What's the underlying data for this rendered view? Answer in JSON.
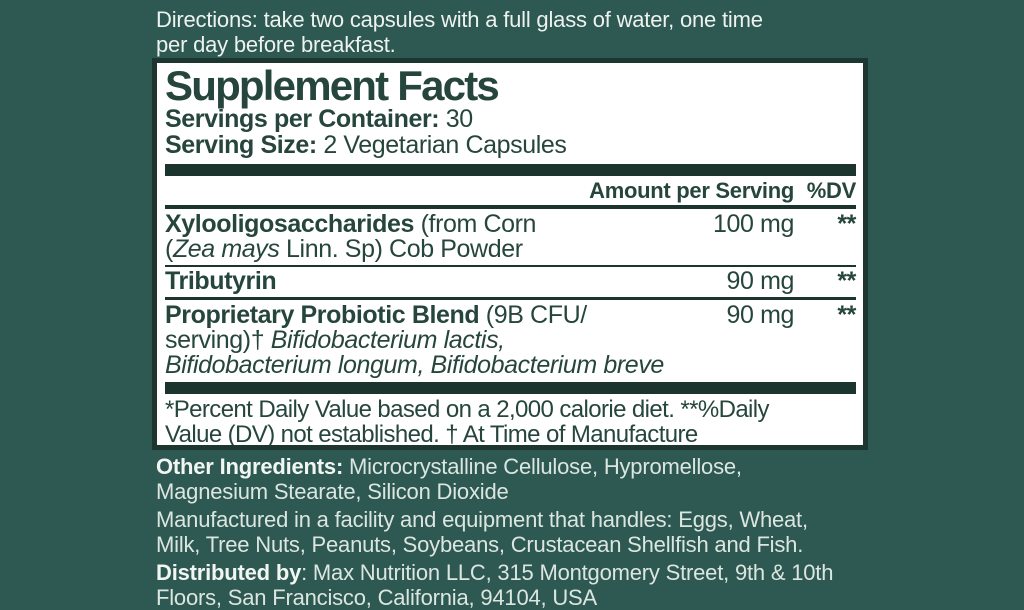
{
  "colors": {
    "background": "#2e5852",
    "panel_background": "#ffffff",
    "panel_border": "#1d362f",
    "ink": "#26463d",
    "divider_bar": "#1b342d",
    "light_text": "#dce6e0"
  },
  "directions": {
    "line1": "Directions: take two capsules with a full glass of water, one time",
    "line2": "per day before breakfast."
  },
  "panel": {
    "title": "Supplement Facts",
    "servings_label": "Servings per Container:",
    "servings_value": " 30",
    "serving_size_label": "Serving Size:",
    "serving_size_value": " 2 Vegetarian Capsules",
    "header": {
      "amount": "Amount per Serving",
      "dv": "%DV"
    },
    "rows": [
      {
        "name_bold": "Xylooligosaccharides",
        "name_regular": " (from Corn",
        "line2_pre": "(",
        "line2_italic": "Zea mays",
        "line2_post": " Linn. Sp) Cob Powder",
        "amount": "100 mg",
        "dv": "**"
      },
      {
        "name_bold": "Tributyrin",
        "amount": "90 mg",
        "dv": "**"
      },
      {
        "name_bold": "Proprietary Probiotic Blend",
        "name_regular": " (9B CFU/",
        "line2_pre": "serving)† ",
        "line2_italic": "Bifidobacterium lactis,",
        "line3_italic": "Bifidobacterium longum, Bifidobacterium breve",
        "amount": "90 mg",
        "dv": "**"
      }
    ],
    "footnote_line1": "*Percent Daily Value based on a 2,000 calorie diet. **%Daily",
    "footnote_line2": "Value (DV) not established. † At Time of Manufacture"
  },
  "other_ingredients": {
    "label": "Other Ingredients:",
    "line1_rest": " Microcrystalline Cellulose, Hypromellose,",
    "line2": "Magnesium Stearate, Silicon Dioxide"
  },
  "allergen": {
    "line1": "Manufactured in a facility and equipment that handles: Eggs, Wheat,",
    "line2": "Milk, Tree Nuts, Peanuts, Soybeans, Crustacean Shellfish and Fish."
  },
  "distributor": {
    "label": "Distributed by",
    "line1_rest": ": Max Nutrition LLC, 315 Montgomery Street, 9th & 10th",
    "line2": "Floors, San Francisco, California, 94104, USA"
  }
}
